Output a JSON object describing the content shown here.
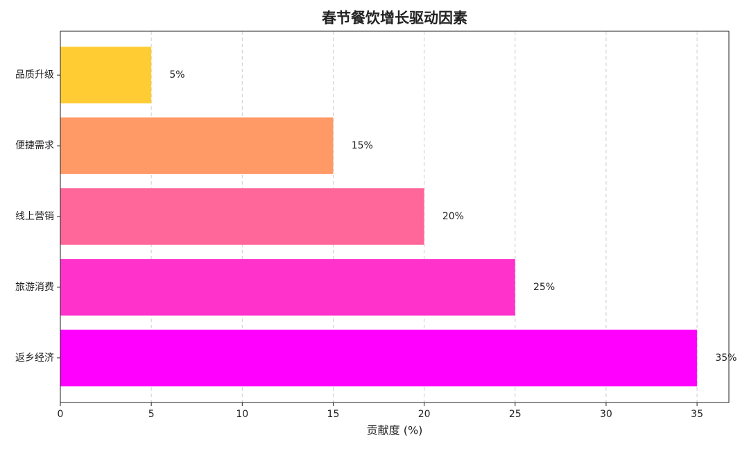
{
  "chart_data": {
    "type": "hbar",
    "title": "春节餐饮增长驱动因素",
    "x_label": "贡献度 (%)",
    "categories": [
      "返乡经济",
      "旅游消费",
      "线上营销",
      "便捷需求",
      "品质升级"
    ],
    "values": [
      35,
      25,
      20,
      15,
      5
    ],
    "value_labels": [
      "35%",
      "25%",
      "20%",
      "15%",
      "5%"
    ],
    "colors": [
      "#ff00ff",
      "#ff33cc",
      "#ff6699",
      "#ff9966",
      "#ffcc33"
    ],
    "xlim": [
      0,
      36.75
    ],
    "xticks": [
      0,
      5,
      10,
      15,
      20,
      25,
      30,
      35
    ],
    "grid": true
  }
}
